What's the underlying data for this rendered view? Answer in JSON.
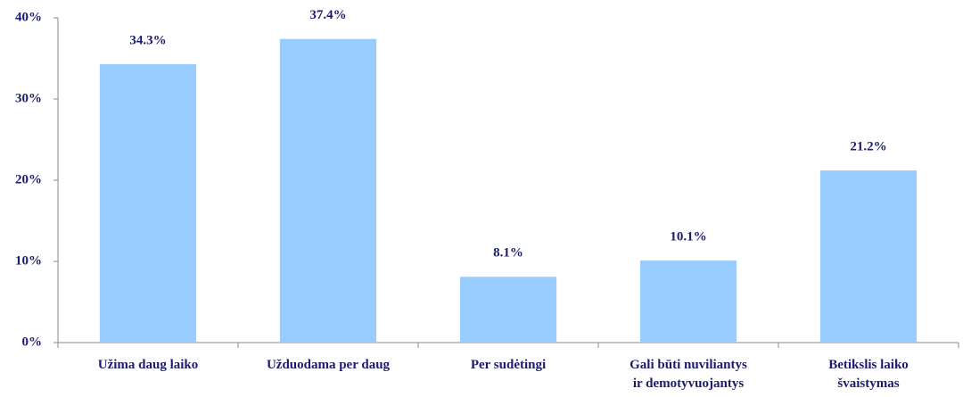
{
  "chart_data": {
    "type": "bar",
    "categories": [
      "Užima daug laiko",
      "Užduodama per daug",
      "Per sudėtingi",
      "Gali būti nuviliantys\nir demotyvuojantys",
      "Betikslis laiko\nšvaistymas"
    ],
    "values": [
      34.3,
      37.4,
      8.1,
      10.1,
      21.2
    ],
    "value_labels": [
      "34.3%",
      "37.4%",
      "8.1%",
      "10.1%",
      "21.2%"
    ],
    "color": "#99ccff",
    "ylim": [
      0,
      40
    ],
    "yticks": [
      {
        "value": 0,
        "label": "0%"
      },
      {
        "value": 10,
        "label": "10%"
      },
      {
        "value": 20,
        "label": "20%"
      },
      {
        "value": 30,
        "label": "30%"
      },
      {
        "value": 40,
        "label": "40%"
      }
    ],
    "grid": false
  }
}
